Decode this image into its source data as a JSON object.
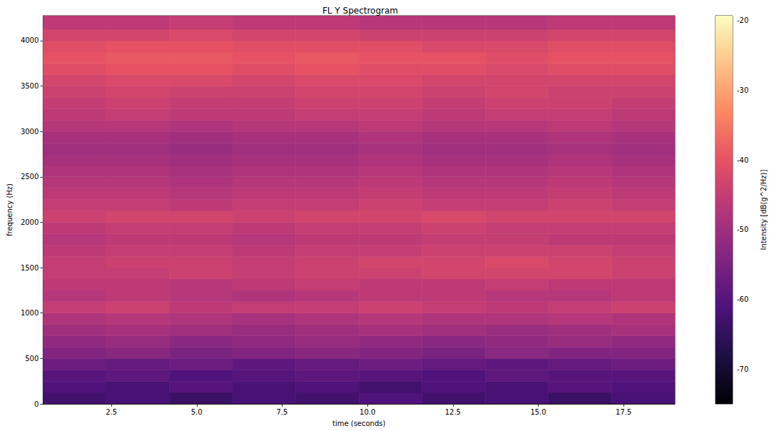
{
  "chart_data": {
    "type": "heatmap",
    "title": "FL Y Spectrogram",
    "x_label": "time (seconds)",
    "y_label": "frequency (Hz)",
    "xlim": [
      0.5,
      19.0
    ],
    "xticks": [
      2.5,
      {
        "value": 5,
        "label": "5.0"
      },
      7.5,
      {
        "value": 10,
        "label": "10.0"
      },
      12.5,
      {
        "value": 15,
        "label": "15.0"
      },
      17.5
    ],
    "ylim": [
      0,
      4275
    ],
    "yticks": [
      0,
      500,
      1000,
      1500,
      2000,
      2500,
      3000,
      3500,
      4000
    ],
    "time_edges": [
      0.5,
      2.35,
      4.2,
      6.05,
      7.9,
      9.75,
      11.6,
      13.45,
      15.3,
      17.15,
      19.0
    ],
    "frequency_edges": [
      0,
      125,
      250,
      375,
      500,
      625,
      750,
      875,
      1000,
      1125,
      1250,
      1375,
      1500,
      1625,
      1750,
      1875,
      2000,
      2125,
      2250,
      2375,
      2500,
      2625,
      2750,
      2875,
      3000,
      3125,
      3250,
      3375,
      3500,
      3625,
      3750,
      3875,
      4000,
      4125,
      4275
    ],
    "cells": [
      [
        -63,
        -62,
        -64,
        -62,
        -63,
        -61,
        -63,
        -62,
        -64,
        -62
      ],
      [
        -61,
        -62,
        -60,
        -62,
        -61,
        -63,
        -61,
        -62,
        -60,
        -61
      ],
      [
        -60,
        -59,
        -61,
        -60,
        -59,
        -60,
        -61,
        -59,
        -60,
        -60
      ],
      [
        -57,
        -58,
        -57,
        -59,
        -58,
        -57,
        -58,
        -59,
        -58,
        -57
      ],
      [
        -54,
        -53,
        -55,
        -54,
        -53,
        -54,
        -55,
        -53,
        -54,
        -54
      ],
      [
        -52,
        -51,
        -53,
        -52,
        -51,
        -52,
        -53,
        -52,
        -51,
        -52
      ],
      [
        -50,
        -49,
        -50,
        -51,
        -50,
        -49,
        -50,
        -51,
        -50,
        -49
      ],
      [
        -48,
        -47,
        -48,
        -49,
        -48,
        -47,
        -48,
        -48,
        -47,
        -48
      ],
      [
        -45,
        -44,
        -46,
        -45,
        -45,
        -44,
        -45,
        -46,
        -45,
        -44
      ],
      [
        -47,
        -46,
        -47,
        -48,
        -47,
        -46,
        -46,
        -47,
        -47,
        -46
      ],
      [
        -46,
        -46,
        -47,
        -46,
        -45,
        -46,
        -46,
        -45,
        -46,
        -46
      ],
      [
        -45,
        -45,
        -44,
        -45,
        -44,
        -44,
        -43,
        -43,
        -43,
        -44
      ],
      [
        -45,
        -44,
        -44,
        -45,
        -44,
        -43,
        -43,
        -42,
        -43,
        -44
      ],
      [
        -46,
        -45,
        -45,
        -46,
        -45,
        -45,
        -44,
        -44,
        -44,
        -45
      ],
      [
        -47,
        -46,
        -46,
        -47,
        -46,
        -46,
        -45,
        -45,
        -46,
        -46
      ],
      [
        -46,
        -45,
        -45,
        -46,
        -45,
        -45,
        -44,
        -45,
        -45,
        -45
      ],
      [
        -44,
        -43,
        -43,
        -44,
        -43,
        -43,
        -42,
        -43,
        -43,
        -43
      ],
      [
        -45,
        -45,
        -46,
        -45,
        -45,
        -44,
        -45,
        -45,
        -44,
        -45
      ],
      [
        -46,
        -46,
        -47,
        -46,
        -46,
        -45,
        -46,
        -46,
        -45,
        -46
      ],
      [
        -47,
        -47,
        -48,
        -47,
        -47,
        -46,
        -47,
        -47,
        -46,
        -47
      ],
      [
        -48,
        -48,
        -49,
        -48,
        -48,
        -47,
        -48,
        -48,
        -47,
        -48
      ],
      [
        -49,
        -49,
        -50,
        -49,
        -49,
        -48,
        -49,
        -49,
        -48,
        -49
      ],
      [
        -50,
        -50,
        -51,
        -50,
        -50,
        -49,
        -50,
        -50,
        -49,
        -50
      ],
      [
        -49,
        -49,
        -50,
        -49,
        -49,
        -48,
        -49,
        -49,
        -48,
        -49
      ],
      [
        -47,
        -47,
        -48,
        -47,
        -47,
        -46,
        -47,
        -47,
        -46,
        -47
      ],
      [
        -46,
        -45,
        -46,
        -46,
        -45,
        -45,
        -46,
        -45,
        -45,
        -46
      ],
      [
        -45,
        -44,
        -45,
        -45,
        -44,
        -44,
        -45,
        -44,
        -44,
        -45
      ],
      [
        -44,
        -43,
        -44,
        -44,
        -43,
        -43,
        -44,
        -43,
        -44,
        -44
      ],
      [
        -43,
        -42,
        -42,
        -43,
        -42,
        -42,
        -43,
        -43,
        -43,
        -43
      ],
      [
        -41,
        -40,
        -40,
        -41,
        -40,
        -41,
        -41,
        -42,
        -41,
        -41
      ],
      [
        -40,
        -39,
        -39,
        -40,
        -39,
        -40,
        -40,
        -41,
        -40,
        -40
      ],
      [
        -41,
        -40,
        -40,
        -41,
        -41,
        -41,
        -42,
        -42,
        -41,
        -41
      ],
      [
        -43,
        -43,
        -42,
        -43,
        -43,
        -44,
        -44,
        -44,
        -43,
        -43
      ],
      [
        -46,
        -46,
        -45,
        -46,
        -46,
        -47,
        -47,
        -47,
        -46,
        -46
      ]
    ],
    "colorbar_label": "Intensity [dB(g^2/Hz)]",
    "colorbar_range": [
      -75,
      -19.3
    ],
    "colorbar_ticks": [
      -70,
      -60,
      -50,
      -40,
      -30,
      -20
    ]
  }
}
